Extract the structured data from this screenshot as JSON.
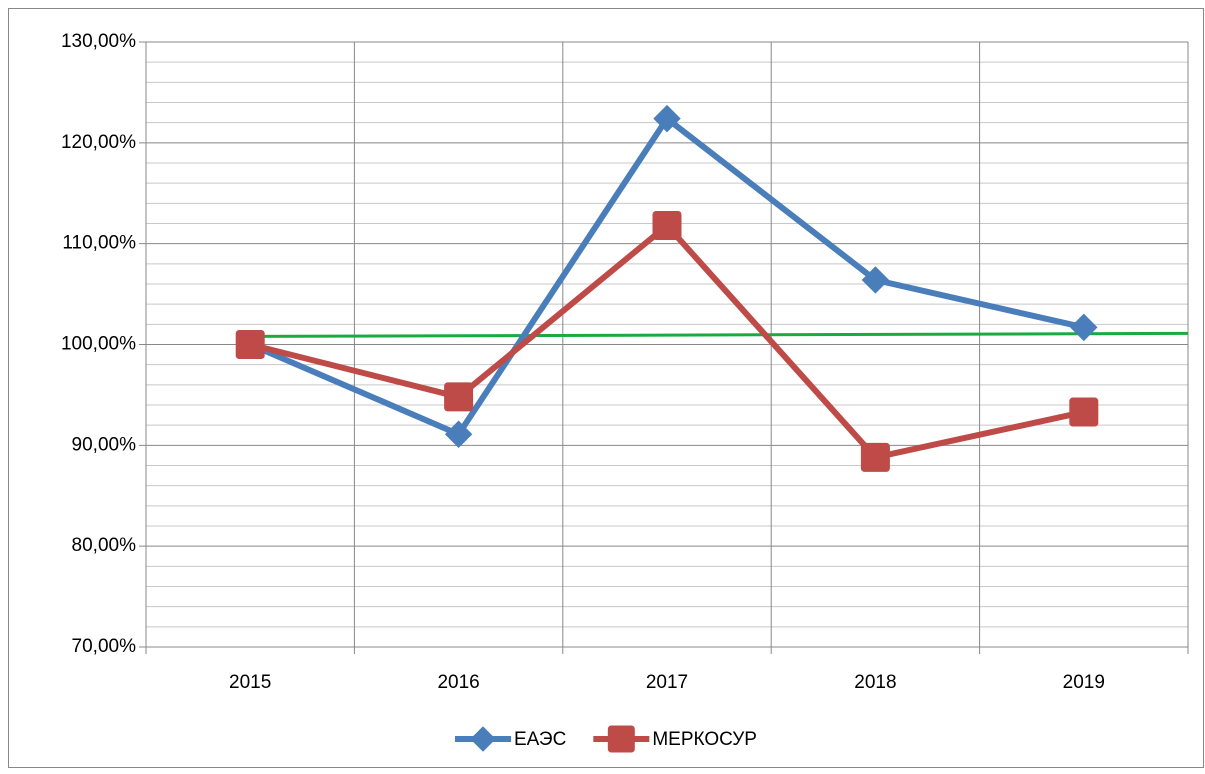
{
  "chart_data": {
    "type": "line",
    "categories": [
      "2015",
      "2016",
      "2017",
      "2018",
      "2019"
    ],
    "series": [
      {
        "name": "ЕАЭС",
        "color": "#4a7ebb",
        "marker": "diamond",
        "values": [
          100.0,
          91.1,
          122.4,
          106.4,
          101.7
        ]
      },
      {
        "name": "МЕРКОСУР",
        "color": "#be4b48",
        "marker": "square",
        "values": [
          100.0,
          94.8,
          111.8,
          88.8,
          93.3
        ]
      }
    ],
    "lines": [
      {
        "color": "#1aab40",
        "values": [
          100.8,
          101.1
        ]
      }
    ],
    "ylim": [
      70,
      130
    ],
    "yticks": [
      {
        "value": 70,
        "label": "70,00%"
      },
      {
        "value": 80,
        "label": "80,00%"
      },
      {
        "value": 90,
        "label": "90,00%"
      },
      {
        "value": 100,
        "label": "100,00%"
      },
      {
        "value": 110,
        "label": "110,00%"
      },
      {
        "value": 120,
        "label": "120,00%"
      },
      {
        "value": 130,
        "label": "130,00%"
      }
    ],
    "yminorticks": [
      72,
      74,
      76,
      78,
      82,
      84,
      86,
      88,
      92,
      94,
      96,
      98,
      102,
      104,
      106,
      108,
      112,
      114,
      116,
      118,
      122,
      124,
      126,
      128
    ],
    "grid": true,
    "legend": "bottom"
  }
}
